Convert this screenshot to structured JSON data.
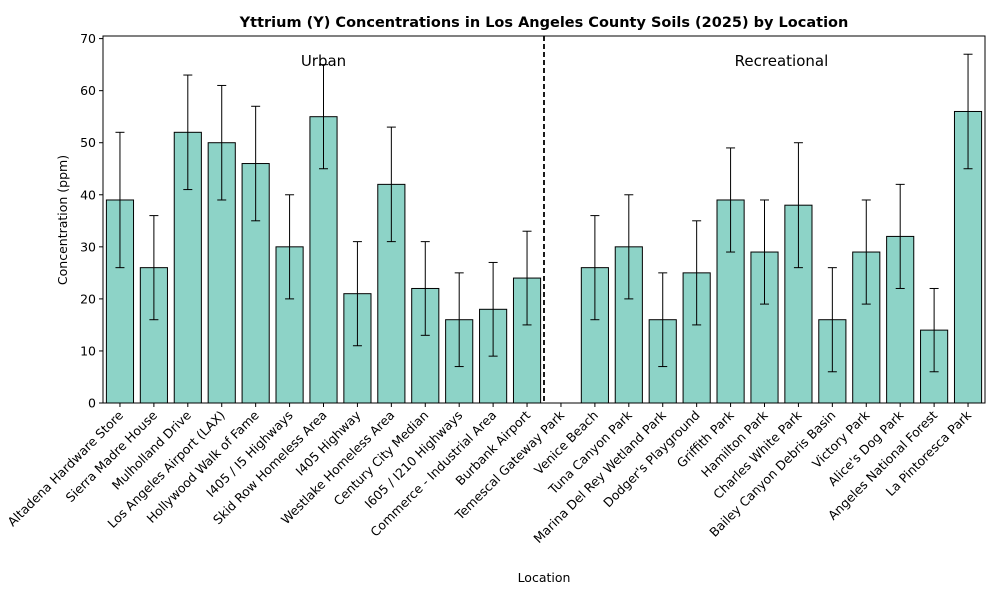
{
  "chart_data": {
    "type": "bar",
    "title": "Yttrium (Y) Concentrations in Los Angeles County Soils (2025) by Location",
    "xlabel": "Location",
    "ylabel": "Concentration (ppm)",
    "ylim": [
      0,
      70.5
    ],
    "yticks": [
      0,
      10,
      20,
      30,
      40,
      50,
      60,
      70
    ],
    "grid": false,
    "bar_color": "#8dd3c7",
    "edge_color": "#000000",
    "categories": [
      "Altadena Hardware Store",
      "Sierra Madre House",
      "Mulholland Drive",
      "Los Angeles Airport (LAX)",
      "Hollywood Walk of Fame",
      "I405 / I5 Highways",
      "Skid Row Homeless Area",
      "I405 Highway",
      "Westlake Homeless Area",
      "Century City Median",
      "I605 / I210 Highways",
      "Commerce - Industrial Area",
      "Burbank Airport",
      "Temescal Gateway Park",
      "Venice Beach",
      "Tuna Canyon Park",
      "Marina Del Rey Wetland Park",
      "Dodger's Playground",
      "Griffith Park",
      "Hamilton Park",
      "Charles White Park",
      "Bailey Canyon Debris Basin",
      "Victory Park",
      "Alice's Dog Park",
      "Angeles National Forest",
      "La Pintoresca Park"
    ],
    "values": [
      39,
      26,
      52,
      50,
      46,
      30,
      55,
      21,
      42,
      22,
      16,
      18,
      24,
      null,
      26,
      30,
      16,
      25,
      39,
      29,
      38,
      16,
      29,
      32,
      14,
      56
    ],
    "error_low": [
      26,
      16,
      41,
      39,
      35,
      20,
      45,
      11,
      31,
      13,
      7,
      9,
      15,
      null,
      16,
      20,
      7,
      15,
      29,
      19,
      26,
      6,
      19,
      22,
      6,
      45
    ],
    "error_high": [
      52,
      36,
      63,
      61,
      57,
      40,
      65,
      31,
      53,
      31,
      25,
      27,
      33,
      null,
      36,
      40,
      25,
      35,
      49,
      39,
      50,
      26,
      39,
      42,
      22,
      67
    ],
    "divider_after_index": 12.5,
    "group_labels": [
      {
        "text": "Urban",
        "center_index": 6
      },
      {
        "text": "Recreational",
        "center_index": 19.5
      }
    ]
  }
}
